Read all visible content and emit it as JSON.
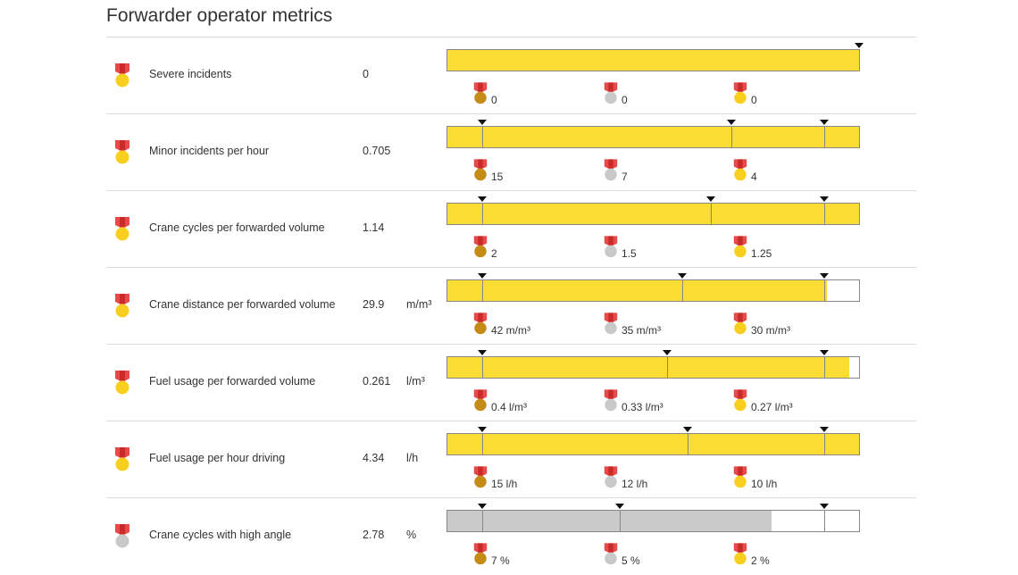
{
  "title": "Forwarder operator metrics",
  "colors": {
    "bar_yellow": "#fadc32",
    "bar_gray": "#cacaca",
    "ribbon_red": "#e84a4a",
    "ribbon_dark": "#c92b2b",
    "gold": "#f8cf1e",
    "silver": "#c9c9c9",
    "bronze": "#c48b16"
  },
  "rows": [
    {
      "name": "Severe incidents",
      "value": "0",
      "unit": "",
      "medal": "gold",
      "fill_fraction": 1.0,
      "fill_color": "yellow",
      "markers": [
        1.0
      ],
      "thresholds": [
        {
          "medal": "bronze",
          "label": "0"
        },
        {
          "medal": "silver",
          "label": "0"
        },
        {
          "medal": "gold",
          "label": "0"
        }
      ]
    },
    {
      "name": "Minor incidents per hour",
      "value": "0.705",
      "unit": "",
      "medal": "gold",
      "fill_fraction": 1.0,
      "fill_color": "yellow",
      "markers": [
        0.085,
        0.69,
        0.915
      ],
      "thresholds": [
        {
          "medal": "bronze",
          "label": "15"
        },
        {
          "medal": "silver",
          "label": "7"
        },
        {
          "medal": "gold",
          "label": "4"
        }
      ]
    },
    {
      "name": "Crane cycles per forwarded volume",
      "value": "1.14",
      "unit": "",
      "medal": "gold",
      "fill_fraction": 1.0,
      "fill_color": "yellow",
      "markers": [
        0.085,
        0.64,
        0.915
      ],
      "thresholds": [
        {
          "medal": "bronze",
          "label": "2"
        },
        {
          "medal": "silver",
          "label": "1.5"
        },
        {
          "medal": "gold",
          "label": "1.25"
        }
      ]
    },
    {
      "name": "Crane distance per forwarded volume",
      "value": "29.9",
      "unit": "m/m³",
      "medal": "gold",
      "fill_fraction": 0.922,
      "fill_color": "yellow",
      "markers": [
        0.085,
        0.57,
        0.915
      ],
      "thresholds": [
        {
          "medal": "bronze",
          "label": "42 m/m³"
        },
        {
          "medal": "silver",
          "label": "35 m/m³"
        },
        {
          "medal": "gold",
          "label": "30 m/m³"
        }
      ]
    },
    {
      "name": "Fuel usage per forwarded volume",
      "value": "0.261",
      "unit": "l/m³",
      "medal": "gold",
      "fill_fraction": 0.977,
      "fill_color": "yellow",
      "markers": [
        0.085,
        0.533,
        0.915
      ],
      "thresholds": [
        {
          "medal": "bronze",
          "label": "0.4 l/m³"
        },
        {
          "medal": "silver",
          "label": "0.33 l/m³"
        },
        {
          "medal": "gold",
          "label": "0.27 l/m³"
        }
      ]
    },
    {
      "name": "Fuel usage per hour driving",
      "value": "4.34",
      "unit": "l/h",
      "medal": "gold",
      "fill_fraction": 1.0,
      "fill_color": "yellow",
      "markers": [
        0.085,
        0.583,
        0.915
      ],
      "thresholds": [
        {
          "medal": "bronze",
          "label": "15 l/h"
        },
        {
          "medal": "silver",
          "label": "12 l/h"
        },
        {
          "medal": "gold",
          "label": "10 l/h"
        }
      ]
    },
    {
      "name": "Crane cycles with high angle",
      "value": "2.78",
      "unit": "%",
      "medal": "silver",
      "fill_fraction": 0.787,
      "fill_color": "gray",
      "markers": [
        0.085,
        0.418,
        0.915
      ],
      "thresholds": [
        {
          "medal": "bronze",
          "label": "7 %"
        },
        {
          "medal": "silver",
          "label": "5 %"
        },
        {
          "medal": "gold",
          "label": "2 %"
        }
      ]
    }
  ]
}
